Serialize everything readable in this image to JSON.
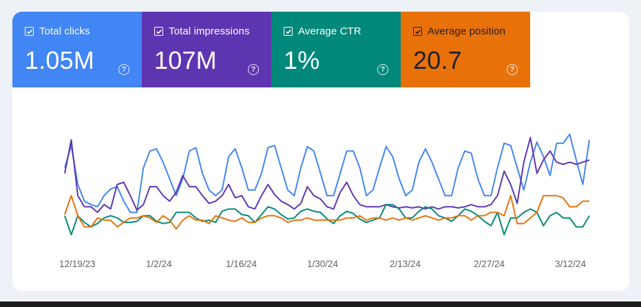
{
  "metrics": [
    {
      "label": "Total clicks",
      "value": "1.05M",
      "color": "#4285f4",
      "icon": "checkbox-checked-icon",
      "help_icon": "help-circle-icon"
    },
    {
      "label": "Total impressions",
      "value": "107M",
      "color": "#5e35b1",
      "icon": "checkbox-checked-icon",
      "help_icon": "help-circle-icon"
    },
    {
      "label": "Average CTR",
      "value": "1%",
      "color": "#00897b",
      "icon": "checkbox-checked-icon",
      "help_icon": "help-circle-icon"
    },
    {
      "label": "Average position",
      "value": "20.7",
      "color": "#e8710a",
      "icon": "checkbox-checked-icon",
      "help_icon": "help-circle-icon"
    }
  ],
  "chart_data": {
    "type": "line",
    "x_tick_labels": [
      "12/19/23",
      "1/2/24",
      "1/16/24",
      "1/30/24",
      "2/13/24",
      "2/27/24",
      "3/12/24"
    ],
    "grid": false,
    "legend": "none",
    "series": [
      {
        "name": "Total clicks",
        "color": "#4285f4",
        "values": [
          0.55,
          0.75,
          0.4,
          0.25,
          0.22,
          0.2,
          0.3,
          0.36,
          0.38,
          0.25,
          0.15,
          0.15,
          0.55,
          0.7,
          0.72,
          0.6,
          0.45,
          0.3,
          0.45,
          0.7,
          0.73,
          0.5,
          0.35,
          0.3,
          0.35,
          0.65,
          0.72,
          0.55,
          0.35,
          0.35,
          0.5,
          0.73,
          0.75,
          0.55,
          0.35,
          0.3,
          0.55,
          0.74,
          0.7,
          0.5,
          0.3,
          0.3,
          0.5,
          0.7,
          0.7,
          0.55,
          0.3,
          0.35,
          0.55,
          0.74,
          0.65,
          0.45,
          0.3,
          0.35,
          0.6,
          0.72,
          0.6,
          0.45,
          0.3,
          0.3,
          0.55,
          0.7,
          0.68,
          0.45,
          0.3,
          0.3,
          0.55,
          0.77,
          0.75,
          0.55,
          0.35,
          0.6,
          0.78,
          0.65,
          0.48,
          0.77,
          0.77,
          0.85,
          0.62,
          0.4,
          0.8
        ]
      },
      {
        "name": "Total impressions",
        "color": "#5e35b1",
        "values": [
          0.5,
          0.8,
          0.3,
          0.2,
          0.2,
          0.15,
          0.22,
          0.18,
          0.4,
          0.42,
          0.3,
          0.17,
          0.22,
          0.38,
          0.38,
          0.3,
          0.25,
          0.33,
          0.48,
          0.38,
          0.38,
          0.3,
          0.23,
          0.25,
          0.3,
          0.4,
          0.28,
          0.3,
          0.2,
          0.18,
          0.3,
          0.4,
          0.31,
          0.25,
          0.22,
          0.18,
          0.23,
          0.38,
          0.3,
          0.27,
          0.2,
          0.18,
          0.33,
          0.42,
          0.3,
          0.22,
          0.2,
          0.2,
          0.2,
          0.22,
          0.2,
          0.19,
          0.2,
          0.19,
          0.2,
          0.18,
          0.2,
          0.18,
          0.2,
          0.2,
          0.19,
          0.2,
          0.22,
          0.2,
          0.2,
          0.22,
          0.3,
          0.52,
          0.4,
          0.23,
          0.6,
          0.82,
          0.5,
          0.62,
          0.7,
          0.6,
          0.58,
          0.6,
          0.58,
          0.6,
          0.62
        ]
      },
      {
        "name": "Average CTR",
        "color": "#00897b",
        "values": [
          0.12,
          -0.05,
          0.12,
          0.06,
          0.02,
          0.05,
          0.1,
          0.12,
          0.1,
          0.06,
          0.06,
          0.07,
          0.12,
          0.12,
          0.07,
          0.05,
          0.06,
          0.15,
          0.15,
          0.15,
          0.1,
          0.07,
          0.08,
          0.06,
          0.16,
          0.18,
          0.18,
          0.13,
          0.12,
          0.06,
          0.13,
          0.2,
          0.18,
          0.13,
          0.09,
          0.1,
          0.16,
          0.18,
          0.16,
          0.15,
          0.09,
          0.05,
          0.12,
          0.16,
          0.14,
          0.09,
          0.06,
          0.08,
          0.1,
          0.22,
          0.22,
          0.18,
          0.1,
          0.1,
          0.16,
          0.2,
          0.18,
          0.12,
          0.1,
          0.07,
          0.12,
          0.18,
          0.16,
          0.12,
          0.07,
          0.03,
          0.15,
          -0.05,
          0.1,
          0.1,
          0.15,
          0.18,
          0.15,
          0.03,
          0.12,
          0.15,
          0.1,
          0.1,
          0.02,
          0.02,
          0.12
        ]
      },
      {
        "name": "Average position",
        "color": "#e8710a",
        "values": [
          0.13,
          0.3,
          0.12,
          0.02,
          0.02,
          0.1,
          0.08,
          0.08,
          0.02,
          0.06,
          0.1,
          0.1,
          0.12,
          0.1,
          0.06,
          0.12,
          0.08,
          0.0,
          0.08,
          0.12,
          0.08,
          0.08,
          0.05,
          0.12,
          0.1,
          0.08,
          0.07,
          0.1,
          0.06,
          0.06,
          0.1,
          0.12,
          0.12,
          0.1,
          0.06,
          0.08,
          0.08,
          0.1,
          0.08,
          0.08,
          0.08,
          0.08,
          0.08,
          0.1,
          0.1,
          0.12,
          0.08,
          0.1,
          0.1,
          0.08,
          0.1,
          0.08,
          0.1,
          0.08,
          0.1,
          0.12,
          0.1,
          0.08,
          0.1,
          0.1,
          0.12,
          0.12,
          0.08,
          0.12,
          0.12,
          0.15,
          0.15,
          0.12,
          0.3,
          0.05,
          0.05,
          0.1,
          0.15,
          0.3,
          0.3,
          0.3,
          0.28,
          0.2,
          0.2,
          0.25,
          0.25
        ]
      }
    ]
  }
}
